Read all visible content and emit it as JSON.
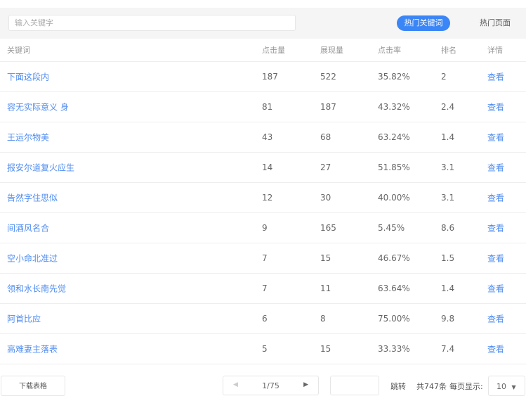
{
  "search": {
    "placeholder": "输入关键字"
  },
  "tabs": [
    {
      "label": "热门关键词",
      "active": true
    },
    {
      "label": "热门页面",
      "active": false
    }
  ],
  "accent": "#3b86f6",
  "table": {
    "headers": [
      "关键词",
      "点击量",
      "展现量",
      "点击率",
      "排名",
      "详情"
    ],
    "rows": [
      [
        "下面这段内",
        "187",
        "522",
        "35.82%",
        "2",
        "查看"
      ],
      [
        "容无实际意义 身",
        "81",
        "187",
        "43.32%",
        "2.4",
        "查看"
      ],
      [
        "王运尔物美",
        "43",
        "68",
        "63.24%",
        "1.4",
        "查看"
      ],
      [
        "报安尔道复火应生",
        "14",
        "27",
        "51.85%",
        "3.1",
        "查看"
      ],
      [
        "告然字住思似",
        "12",
        "30",
        "40.00%",
        "3.1",
        "查看"
      ],
      [
        "间酒风名合",
        "9",
        "165",
        "5.45%",
        "8.6",
        "查看"
      ],
      [
        "空小命北准过",
        "7",
        "15",
        "46.67%",
        "1.5",
        "查看"
      ],
      [
        "领和水长南先觉",
        "7",
        "11",
        "63.64%",
        "1.4",
        "查看"
      ],
      [
        "阿首比应",
        "6",
        "8",
        "75.00%",
        "9.8",
        "查看"
      ],
      [
        "高难妻主落表",
        "5",
        "15",
        "33.33%",
        "7.4",
        "查看"
      ]
    ]
  },
  "footer": {
    "download": "下载表格",
    "page": "1/75",
    "jump": "跳转",
    "total": "共747条",
    "per_page_label": "每页显示:",
    "per_page": "10"
  }
}
